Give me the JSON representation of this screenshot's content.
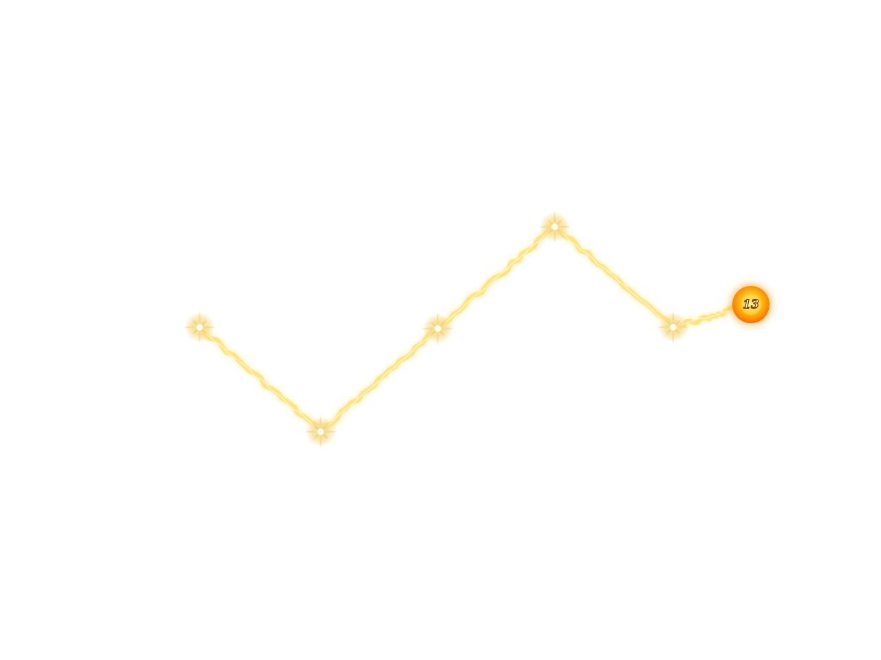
{
  "level_path": {
    "current_level_label": "13",
    "nodes": [
      {
        "icon": "sparkle-star-icon",
        "state": "unlocked"
      },
      {
        "icon": "sparkle-star-icon",
        "state": "unlocked"
      },
      {
        "icon": "sparkle-star-icon",
        "state": "unlocked"
      },
      {
        "icon": "sparkle-star-icon",
        "state": "unlocked"
      },
      {
        "icon": "sparkle-star-icon",
        "state": "unlocked"
      }
    ],
    "colors": {
      "path_glow": "#ffd84a",
      "path_core": "#fff6c8",
      "orb_outer": "#ff6a00",
      "orb_inner": "#ffd23a",
      "number_text": "#fff7d6",
      "number_outline": "#7a3a00"
    }
  }
}
